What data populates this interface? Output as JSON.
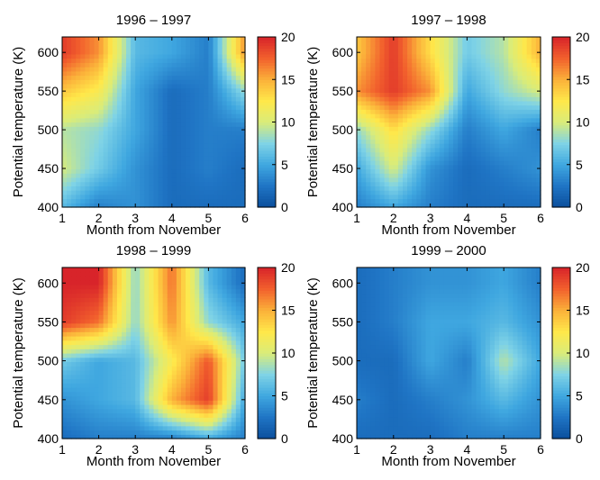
{
  "figure": {
    "colormap": [
      "#0b4f9c",
      "#1f74c4",
      "#3fa7e0",
      "#7fd3e6",
      "#d9ec7a",
      "#ffe84a",
      "#fbb13a",
      "#f2612d",
      "#d8242a"
    ],
    "colorbar_ticks": [
      "0",
      "5",
      "10",
      "15",
      "20"
    ]
  },
  "chart_data": [
    {
      "type": "heatmap",
      "title": "1996 – 1997",
      "xlabel": "Month from November",
      "ylabel": "Potential temperature (K)",
      "x": [
        1,
        2,
        3,
        4,
        5,
        6
      ],
      "y": [
        400,
        450,
        500,
        550,
        600
      ],
      "xlim": [
        1,
        6
      ],
      "ylim": [
        400,
        620
      ],
      "zlim": [
        0,
        20
      ],
      "x_ticks": [
        "1",
        "2",
        "3",
        "4",
        "5",
        "6"
      ],
      "y_ticks": [
        "400",
        "450",
        "500",
        "550",
        "600"
      ],
      "z": [
        [
          6,
          3,
          4,
          2,
          2,
          2
        ],
        [
          10,
          7,
          4,
          2,
          3,
          2
        ],
        [
          9,
          8,
          5,
          2,
          3,
          3
        ],
        [
          14,
          12,
          5,
          2,
          3,
          8
        ],
        [
          19,
          16,
          6,
          5,
          3,
          16
        ]
      ]
    },
    {
      "type": "heatmap",
      "title": "1997 – 1998",
      "xlabel": "Month from November",
      "ylabel": "Potential temperature (K)",
      "x": [
        1,
        2,
        3,
        4,
        5,
        6
      ],
      "y": [
        400,
        450,
        500,
        550,
        600
      ],
      "xlim": [
        1,
        6
      ],
      "ylim": [
        400,
        620
      ],
      "zlim": [
        0,
        20
      ],
      "x_ticks": [
        "1",
        "2",
        "3",
        "4",
        "5",
        "6"
      ],
      "y_ticks": [
        "400",
        "450",
        "500",
        "550",
        "600"
      ],
      "z": [
        [
          3,
          5,
          3,
          2,
          2,
          2
        ],
        [
          5,
          10,
          4,
          2,
          3,
          4
        ],
        [
          8,
          13,
          8,
          3,
          5,
          3
        ],
        [
          16,
          19,
          16,
          5,
          8,
          10
        ],
        [
          14,
          19,
          13,
          7,
          9,
          15
        ]
      ]
    },
    {
      "type": "heatmap",
      "title": "1998 – 1999",
      "xlabel": "Month from November",
      "ylabel": "Potential temperature (K)",
      "x": [
        1,
        2,
        3,
        4,
        5,
        6
      ],
      "y": [
        400,
        450,
        500,
        550,
        600
      ],
      "xlim": [
        1,
        6
      ],
      "ylim": [
        400,
        620
      ],
      "zlim": [
        0,
        20
      ],
      "x_ticks": [
        "1",
        "2",
        "3",
        "4",
        "5",
        "6"
      ],
      "y_ticks": [
        "400",
        "450",
        "500",
        "550",
        "600"
      ],
      "z": [
        [
          2,
          3,
          3,
          3,
          5,
          3
        ],
        [
          4,
          5,
          6,
          15,
          19,
          5
        ],
        [
          7,
          5,
          6,
          12,
          18,
          7
        ],
        [
          19,
          17,
          8,
          16,
          8,
          5
        ],
        [
          20,
          20,
          8,
          17,
          6,
          2
        ]
      ]
    },
    {
      "type": "heatmap",
      "title": "1999 – 2000",
      "xlabel": "Month from November",
      "ylabel": "Potential temperature (K)",
      "x": [
        1,
        2,
        3,
        4,
        5,
        6
      ],
      "y": [
        400,
        450,
        500,
        550,
        600
      ],
      "xlim": [
        1,
        6
      ],
      "ylim": [
        400,
        620
      ],
      "zlim": [
        0,
        20
      ],
      "x_ticks": [
        "1",
        "2",
        "3",
        "4",
        "5",
        "6"
      ],
      "y_ticks": [
        "400",
        "450",
        "500",
        "550",
        "600"
      ],
      "z": [
        [
          2,
          2,
          2,
          3,
          3,
          3
        ],
        [
          3,
          2,
          3,
          4,
          6,
          4
        ],
        [
          2,
          2,
          5,
          3,
          9,
          5
        ],
        [
          2,
          3,
          5,
          5,
          6,
          4
        ],
        [
          2,
          3,
          4,
          4,
          5,
          3
        ]
      ]
    }
  ]
}
